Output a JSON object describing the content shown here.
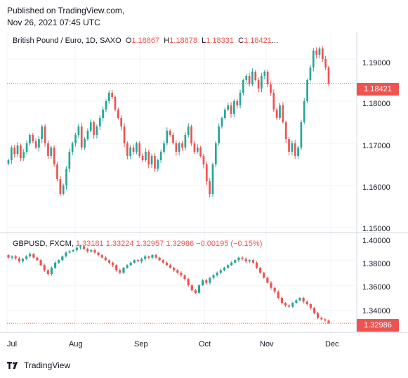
{
  "header": {
    "line1": "Published on TradingView.com,",
    "line2": "Nov 26, 2021 07:45 UTC"
  },
  "footer": {
    "brand": "TradingView",
    "logo_icon": "tradingview-logo-icon"
  },
  "colors": {
    "up": "#26a69a",
    "down": "#ef5350",
    "grid": "#f0f3fa",
    "price_line": "#ef5350"
  },
  "top_panel": {
    "symbol": "British Pound / Euro, 1D, SAXO",
    "o_label": "O",
    "o_value": "1.18867",
    "h_label": "H",
    "h_value": "1.18878",
    "l_label": "L",
    "l_value": "1.18331",
    "c_label": "C",
    "c_value": "1.18421",
    "c_suffix": "...",
    "last_price": "1.18421"
  },
  "bottom_panel": {
    "symbol": "GBPUSD, FXCM,",
    "o_value": "1.33181",
    "h_value": "1.33224",
    "l_value": "1.32957",
    "c_value": "1.32986",
    "change": "−0.00195 (−0.15%)",
    "last_price": "1.32986"
  },
  "chart_data": [
    {
      "type": "candlestick",
      "title": "British Pound / Euro, 1D, SAXO",
      "ylim": [
        1.149,
        1.1965
      ],
      "y_ticks": [
        "1.19000",
        "1.18000",
        "1.17000",
        "1.16000",
        "1.15000"
      ],
      "y_tick_values": [
        1.19,
        1.18,
        1.17,
        1.16,
        1.15
      ],
      "x_ticks": [
        "Jul",
        "Aug",
        "Sep",
        "Oct",
        "Nov",
        "Dec"
      ],
      "last": 1.18421,
      "series": [
        {
          "name": "GBP/EUR",
          "close": [
            1.166,
            1.169,
            1.1675,
            1.1695,
            1.1665,
            1.168,
            1.17,
            1.172,
            1.1705,
            1.169,
            1.171,
            1.174,
            1.17,
            1.167,
            1.169,
            1.165,
            1.1615,
            1.158,
            1.16,
            1.164,
            1.168,
            1.17,
            1.172,
            1.174,
            1.169,
            1.171,
            1.173,
            1.175,
            1.172,
            1.174,
            1.176,
            1.178,
            1.18,
            1.182,
            1.181,
            1.178,
            1.176,
            1.174,
            1.17,
            1.167,
            1.169,
            1.168,
            1.17,
            1.167,
            1.166,
            1.168,
            1.165,
            1.167,
            1.164,
            1.166,
            1.168,
            1.17,
            1.173,
            1.172,
            1.17,
            1.168,
            1.17,
            1.169,
            1.172,
            1.174,
            1.17,
            1.168,
            1.169,
            1.167,
            1.165,
            1.161,
            1.158,
            1.165,
            1.17,
            1.174,
            1.176,
            1.178,
            1.179,
            1.177,
            1.18,
            1.179,
            1.182,
            1.185,
            1.186,
            1.184,
            1.187,
            1.185,
            1.183,
            1.186,
            1.187,
            1.184,
            1.182,
            1.178,
            1.176,
            1.179,
            1.175,
            1.171,
            1.168,
            1.17,
            1.167,
            1.169,
            1.175,
            1.18,
            1.185,
            1.188,
            1.192,
            1.191,
            1.1925,
            1.19,
            1.188,
            1.1842
          ]
        }
      ]
    },
    {
      "type": "candlestick",
      "title": "GBPUSD, FXCM",
      "ylim": [
        1.3232,
        1.4008
      ],
      "y_ticks": [
        "1.40000",
        "1.38000",
        "1.36000",
        "1.34000"
      ],
      "y_tick_values": [
        1.4,
        1.38,
        1.36,
        1.34
      ],
      "x_ticks": [
        "Jul",
        "Aug",
        "Sep",
        "Oct",
        "Nov",
        "Dec"
      ],
      "last": 1.32986,
      "series": [
        {
          "name": "GBPUSD",
          "close": [
            1.382,
            1.383,
            1.3815,
            1.379,
            1.381,
            1.383,
            1.385,
            1.382,
            1.38,
            1.376,
            1.372,
            1.369,
            1.374,
            1.378,
            1.38,
            1.383,
            1.386,
            1.387,
            1.388,
            1.39,
            1.391,
            1.389,
            1.387,
            1.388,
            1.386,
            1.384,
            1.382,
            1.38,
            1.378,
            1.376,
            1.372,
            1.37,
            1.374,
            1.376,
            1.378,
            1.38,
            1.379,
            1.381,
            1.383,
            1.382,
            1.384,
            1.382,
            1.38,
            1.378,
            1.376,
            1.374,
            1.372,
            1.37,
            1.368,
            1.365,
            1.36,
            1.356,
            1.354,
            1.36,
            1.364,
            1.362,
            1.366,
            1.368,
            1.37,
            1.372,
            1.374,
            1.376,
            1.378,
            1.38,
            1.382,
            1.381,
            1.379,
            1.38,
            1.378,
            1.374,
            1.37,
            1.366,
            1.362,
            1.358,
            1.355,
            1.35,
            1.346,
            1.344,
            1.343,
            1.346,
            1.348,
            1.35,
            1.347,
            1.345,
            1.342,
            1.338,
            1.334,
            1.333,
            1.332,
            1.3299
          ]
        }
      ]
    }
  ]
}
